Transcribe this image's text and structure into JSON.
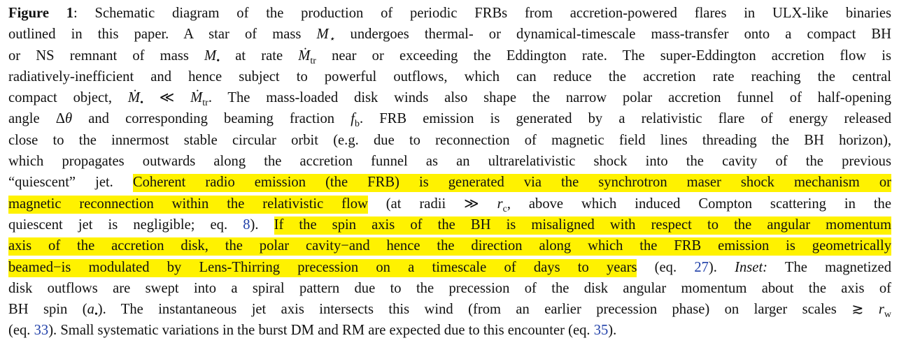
{
  "caption": {
    "label": "Figure 1",
    "l1": ": Schematic diagram of the production of periodic FRBs from accretion-powered flares in ULX-like binaries",
    "l2a": "outlined in this paper. A star of mass ",
    "l2b": " undergoes thermal- or dynamical-timescale mass-transfer onto a compact BH",
    "l3a": "or NS remnant of mass ",
    "l3b": " at rate ",
    "l3c": " near or exceeding the Eddington rate. The super-Eddington accretion flow is",
    "l4": "radiatively-inefficient and hence subject to powerful outflows, which can reduce the accretion rate reaching the central",
    "l5a": "compact object, ",
    "l5b": ". The mass-loaded disk winds also shape the narrow polar accretion funnel of half-opening",
    "l6a": "angle ",
    "l6b": " and corresponding beaming fraction ",
    "l6c": ". FRB emission is generated by a relativistic flare of energy released",
    "l7": "close to the innermost stable circular orbit (e.g. due to reconnection of magnetic field lines threading the BH horizon),",
    "l8": "which propagates outwards along the accretion funnel as an ultrarelativistic shock into the cavity of the previous",
    "l9a": "“quiescent” jet. ",
    "l9hl": "Coherent radio emission (the FRB) is generated via the synchrotron maser shock mechanism or",
    "l10hl": "magnetic reconnection within the relativistic flow",
    "l10b": " (at radii ",
    "l10c": ", above which induced Compton scattering in the",
    "l11a": "quiescent jet is negligible; eq. ",
    "l11ref": "8",
    "l11b": "). ",
    "l11hl": "If the spin axis of the BH is misaligned with respect to the angular momentum",
    "l12hl": "axis of the accretion disk, the polar cavity−and hence the direction along which the FRB emission is geometrically",
    "l13hl": "beamed−is modulated by Lens-Thirring precession on a timescale of days to years",
    "l13a": " (eq. ",
    "l13ref": "27",
    "l13b": "). ",
    "inset": "Inset:",
    "l13c": " The magnetized",
    "l14": "disk outflows are swept into a spiral pattern due to the precession of the disk angular momentum about the axis of",
    "l15a": "BH spin (",
    "l15b": "). The instantaneous jet axis intersects this wind (from an earlier precession phase) on larger scales ",
    "l16a": "(eq. ",
    "l16ref1": "33",
    "l16b": "). Small systematic variations in the burst DM and RM are expected due to this encounter (eq. ",
    "l16ref2": "35",
    "l16c": ").",
    "math": {
      "m_star": "M⋆",
      "m_bh": "M•",
      "mdot_tr": "Ṁtr",
      "mdot_rel": "Ṁ• ≪ Ṁtr",
      "dtheta": "Δθ",
      "fb": "fb",
      "radii": "≫ rc",
      "a_bh": "a•",
      "rw": "≳ rw"
    }
  }
}
